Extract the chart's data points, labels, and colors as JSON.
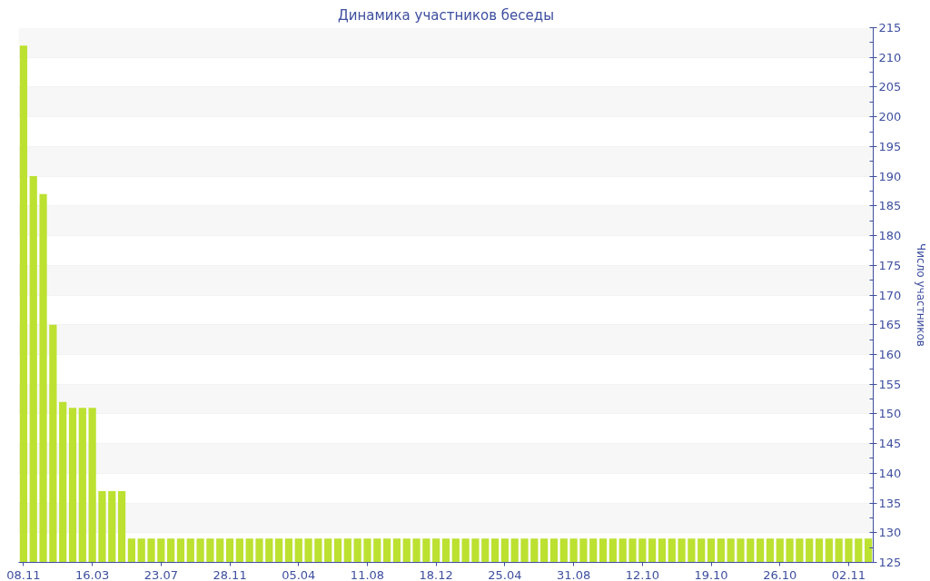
{
  "chart_data": {
    "type": "bar",
    "title": "Динамика участников беседы",
    "ylabel": "Число участников",
    "categories": [
      "08.11",
      null,
      null,
      null,
      null,
      null,
      null,
      "16.03",
      null,
      null,
      null,
      null,
      null,
      null,
      "23.07",
      null,
      null,
      null,
      null,
      null,
      null,
      "28.11",
      null,
      null,
      null,
      null,
      null,
      null,
      "05.04",
      null,
      null,
      null,
      null,
      null,
      null,
      "11.08",
      null,
      null,
      null,
      null,
      null,
      null,
      "18.12",
      null,
      null,
      null,
      null,
      null,
      null,
      "25.04",
      null,
      null,
      null,
      null,
      null,
      null,
      "31.08",
      null,
      null,
      null,
      null,
      null,
      null,
      "12.10",
      null,
      null,
      null,
      null,
      null,
      null,
      "19.10",
      null,
      null,
      null,
      null,
      null,
      null,
      "26.10",
      null,
      null,
      null,
      null,
      null,
      null,
      "02.11",
      null,
      null
    ],
    "values": [
      212,
      190,
      187,
      165,
      152,
      151,
      151,
      151,
      137,
      137,
      137,
      129,
      129,
      129,
      129,
      129,
      129,
      129,
      129,
      129,
      129,
      129,
      129,
      129,
      129,
      129,
      129,
      129,
      129,
      129,
      129,
      129,
      129,
      129,
      129,
      129,
      129,
      129,
      129,
      129,
      129,
      129,
      129,
      129,
      129,
      129,
      129,
      129,
      129,
      129,
      129,
      129,
      129,
      129,
      129,
      129,
      129,
      129,
      129,
      129,
      129,
      129,
      129,
      129,
      129,
      129,
      129,
      129,
      129,
      129,
      129,
      129,
      129,
      129,
      129,
      129,
      129,
      129,
      129,
      129,
      129,
      129,
      129,
      129,
      129,
      129,
      129
    ],
    "color": "#bce131",
    "ylim": [
      125,
      215
    ],
    "yticks": [
      125,
      {
        "value": 127.5,
        "label": null
      },
      130,
      {
        "value": 132.5,
        "label": null
      },
      135,
      {
        "value": 137.5,
        "label": null
      },
      140,
      {
        "value": 142.5,
        "label": null
      },
      145,
      {
        "value": 147.5,
        "label": null
      },
      150,
      {
        "value": 152.5,
        "label": null
      },
      155,
      {
        "value": 157.5,
        "label": null
      },
      160,
      {
        "value": 162.5,
        "label": null
      },
      165,
      {
        "value": 167.5,
        "label": null
      },
      170,
      {
        "value": 172.5,
        "label": null
      },
      175,
      {
        "value": 177.5,
        "label": null
      },
      180,
      {
        "value": 182.5,
        "label": null
      },
      185,
      {
        "value": 187.5,
        "label": null
      },
      190,
      {
        "value": 192.5,
        "label": null
      },
      195,
      {
        "value": 197.5,
        "label": null
      },
      200,
      {
        "value": 202.5,
        "label": null
      },
      205,
      {
        "value": 207.5,
        "label": null
      },
      210,
      {
        "value": 212.5,
        "label": null
      },
      215
    ],
    "grid": "y"
  }
}
